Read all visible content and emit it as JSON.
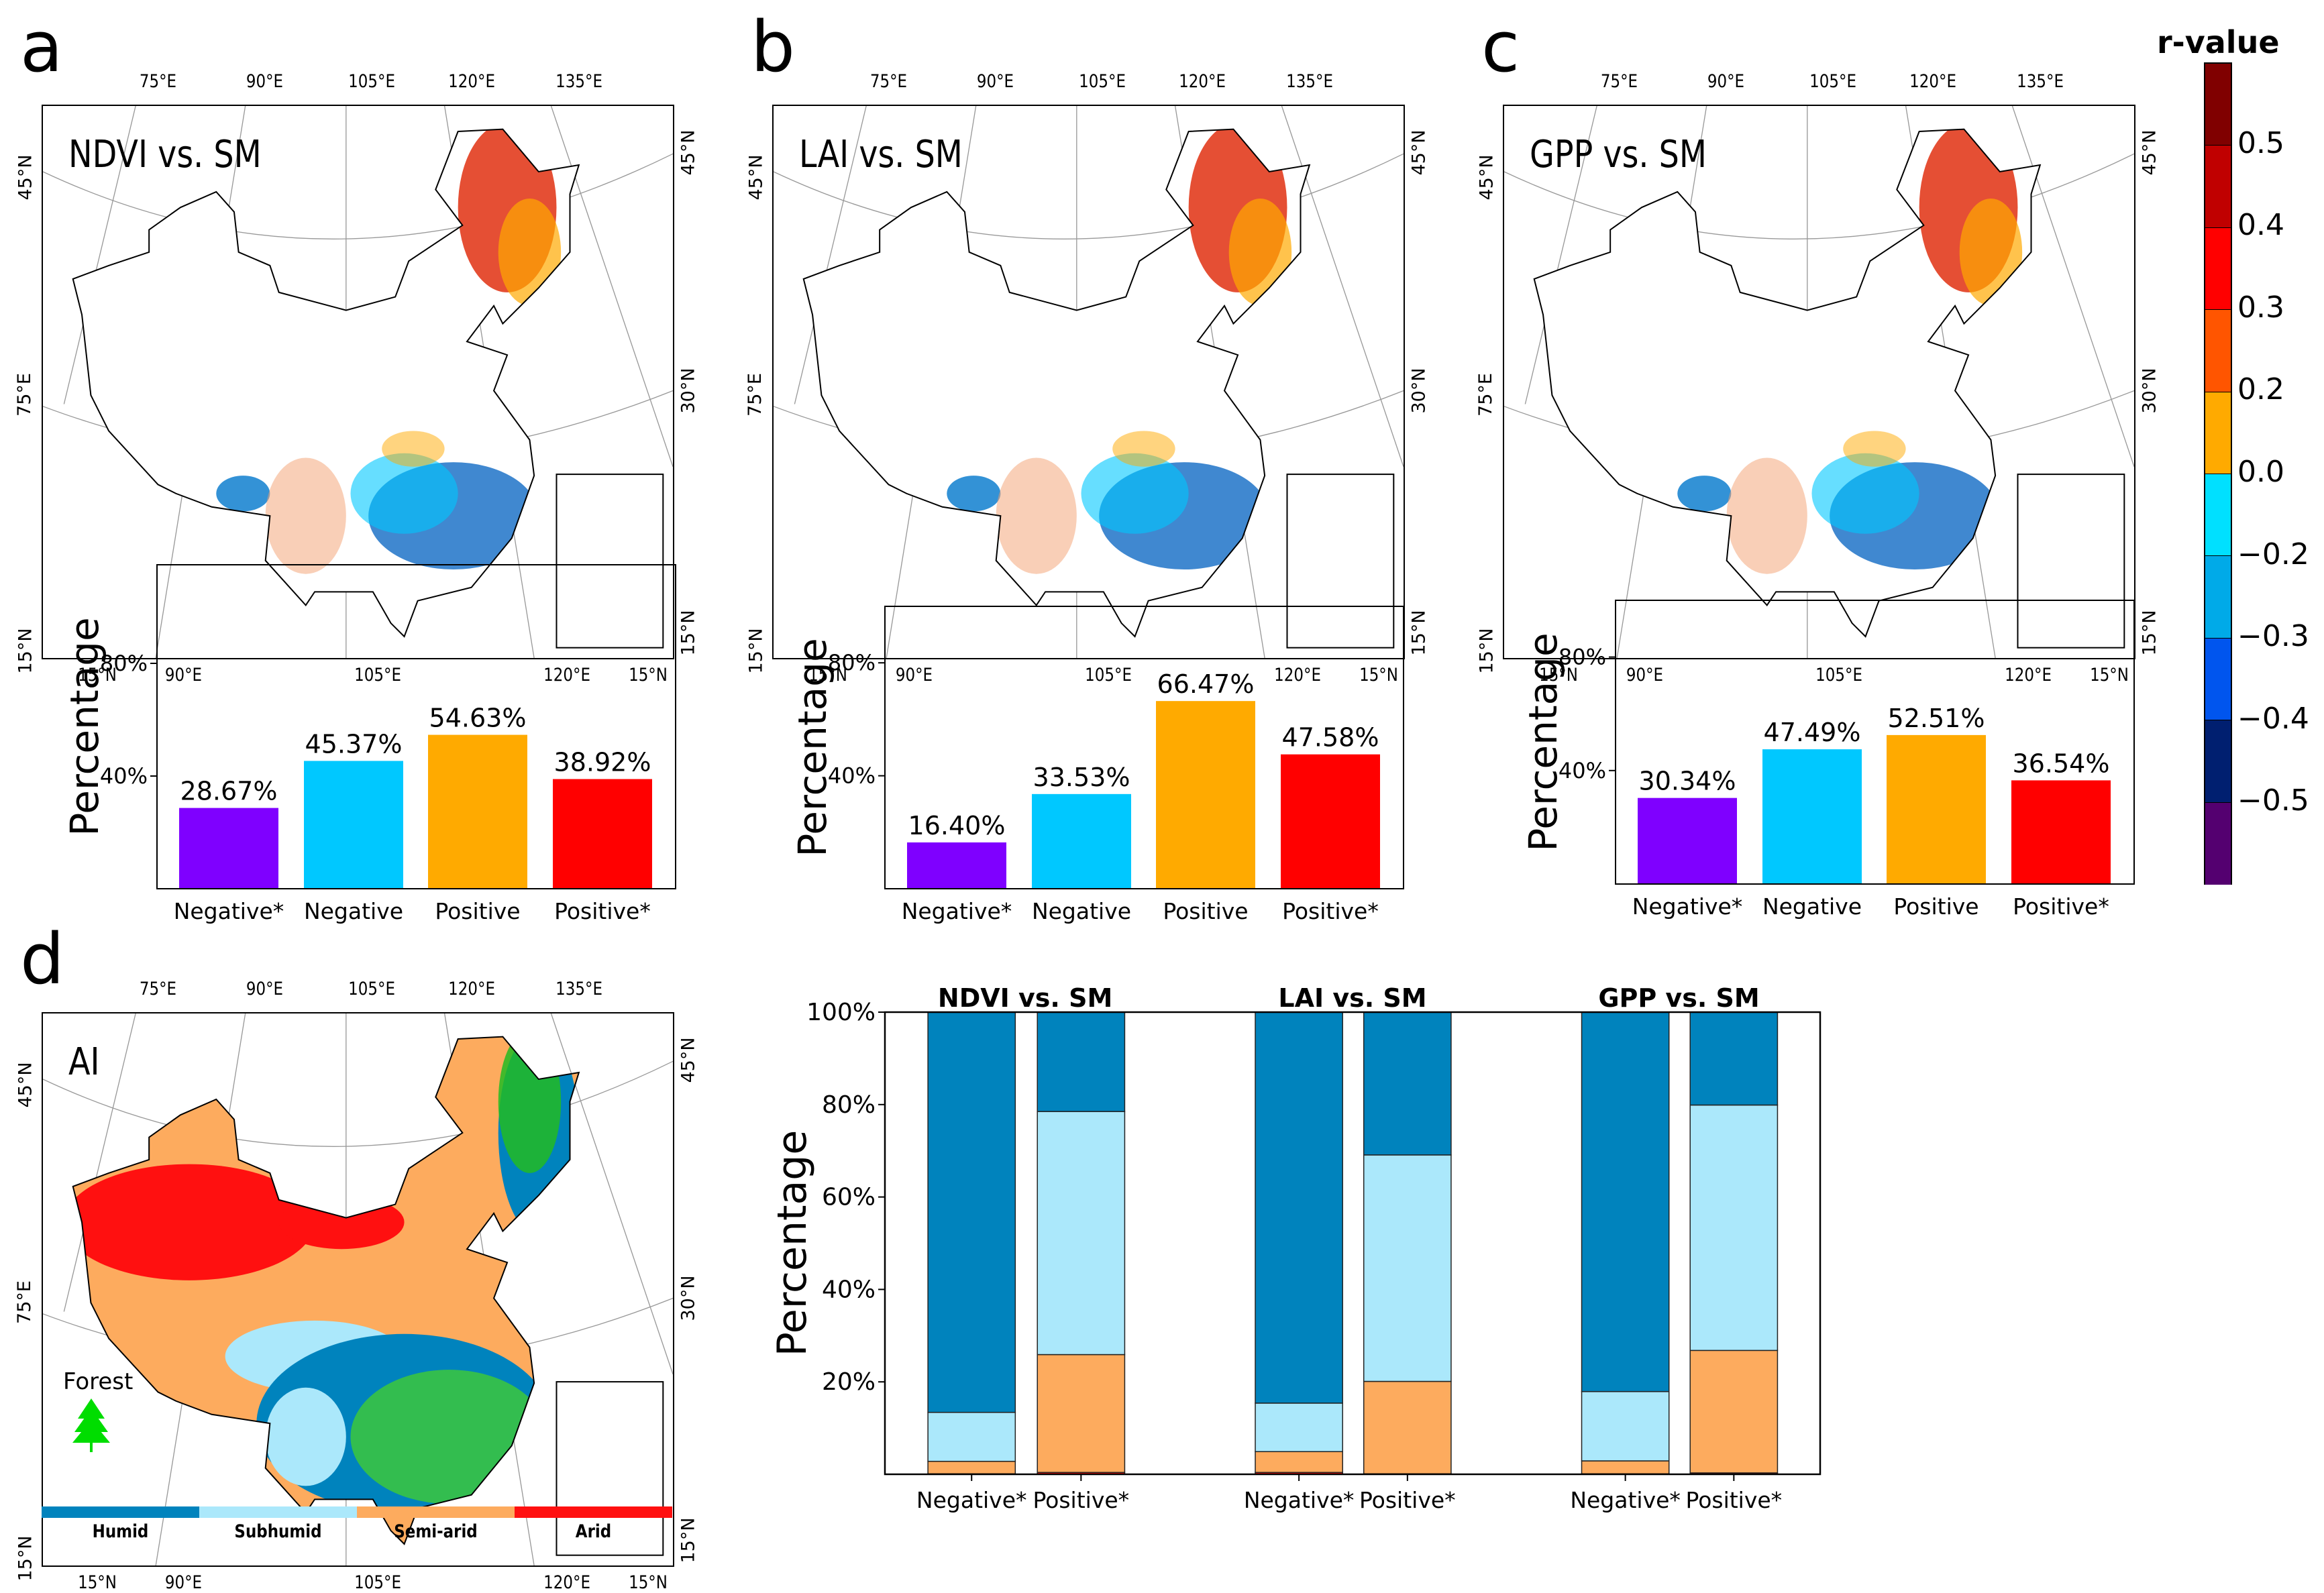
{
  "panels": [
    {
      "letter": "a",
      "map_title": "NDVI vs. SM"
    },
    {
      "letter": "b",
      "map_title": "LAI vs. SM"
    },
    {
      "letter": "c",
      "map_title": "GPP vs. SM"
    }
  ],
  "map_ticks": {
    "top": [
      "75°E",
      "90°E",
      "105°E",
      "120°E",
      "135°E"
    ],
    "bottom": [
      "15°N",
      "90°E",
      "105°E",
      "120°E",
      "15°N"
    ],
    "left": [
      "45°N",
      "75°E",
      "15°N"
    ],
    "right": [
      "45°N",
      "30°N",
      "15°N"
    ]
  },
  "colorbar": {
    "title": "r-value",
    "ticks": [
      "0.5",
      "0.4",
      "0.3",
      "0.2",
      "0.0",
      "−0.2",
      "−0.3",
      "−0.4",
      "−0.5"
    ],
    "colors": [
      "#800000",
      "#c00000",
      "#ff0000",
      "#ff5500",
      "#ffaa00",
      "#00e0ff",
      "#00aae8",
      "#0055ee",
      "#001f70",
      "#540070"
    ]
  },
  "panel_d": {
    "letter": "d",
    "map_title": "AI",
    "forest_label": "Forest",
    "forest_color": "#00dd00",
    "legend": [
      {
        "label": "Humid",
        "color": "#0083bd"
      },
      {
        "label": "Subhumid",
        "color": "#abe8fb"
      },
      {
        "label": "Semi-arid",
        "color": "#fdab5e"
      },
      {
        "label": "Arid",
        "color": "#ff1010"
      }
    ]
  },
  "chart_data": [
    {
      "type": "bar",
      "panel": "a",
      "ylabel": "Percentage",
      "ylim": [
        0,
        115
      ],
      "yticks": [
        40,
        80
      ],
      "ytick_labels": [
        "40%",
        "80%"
      ],
      "categories": [
        "Negative*",
        "Negative",
        "Positive",
        "Positive*"
      ],
      "values": [
        28.67,
        45.37,
        54.63,
        38.92
      ],
      "value_labels": [
        "28.67%",
        "45.37%",
        "54.63%",
        "38.92%"
      ],
      "colors": [
        "#7f00ff",
        "#00c8ff",
        "#ffaa00",
        "#ff0000"
      ]
    },
    {
      "type": "bar",
      "panel": "b",
      "ylabel": "Percentage",
      "ylim": [
        0,
        100
      ],
      "yticks": [
        40,
        80
      ],
      "ytick_labels": [
        "40%",
        "80%"
      ],
      "categories": [
        "Negative*",
        "Negative",
        "Positive",
        "Positive*"
      ],
      "values": [
        16.4,
        33.53,
        66.47,
        47.58
      ],
      "value_labels": [
        "16.40%",
        "33.53%",
        "66.47%",
        "47.58%"
      ],
      "colors": [
        "#7f00ff",
        "#00c8ff",
        "#ffaa00",
        "#ff0000"
      ]
    },
    {
      "type": "bar",
      "panel": "c",
      "ylabel": "Percentage",
      "ylim": [
        0,
        100
      ],
      "yticks": [
        40,
        80
      ],
      "ytick_labels": [
        "40%",
        "80%"
      ],
      "categories": [
        "Negative*",
        "Negative",
        "Positive",
        "Positive*"
      ],
      "values": [
        30.34,
        47.49,
        52.51,
        36.54
      ],
      "value_labels": [
        "30.34%",
        "47.49%",
        "52.51%",
        "36.54%"
      ],
      "colors": [
        "#7f00ff",
        "#00c8ff",
        "#ffaa00",
        "#ff0000"
      ]
    },
    {
      "type": "bar",
      "stacked": true,
      "panel": "d",
      "ylabel": "Percentage",
      "ylim": [
        0,
        100
      ],
      "yticks": [
        20,
        40,
        60,
        80,
        100
      ],
      "ytick_labels": [
        "20%",
        "40%",
        "60%",
        "80%",
        "100%"
      ],
      "groups": [
        "NDVI vs. SM",
        "LAI vs. SM",
        "GPP vs. SM"
      ],
      "categories": [
        "Negative*",
        "Positive*"
      ],
      "stack_order": [
        "Arid",
        "Semi-arid",
        "Subhumid",
        "Humid"
      ],
      "colors": {
        "Arid": "#ff1010",
        "Semi-arid": "#fdab5e",
        "Subhumid": "#abe8fb",
        "Humid": "#0083bd"
      },
      "bars": [
        {
          "group": "NDVI vs. SM",
          "category": "Negative*",
          "Arid": 0.1,
          "Semi-arid": 2.7,
          "Subhumid": 10.6,
          "Humid": 86.6
        },
        {
          "group": "NDVI vs. SM",
          "category": "Positive*",
          "Arid": 0.4,
          "Semi-arid": 25.5,
          "Subhumid": 52.6,
          "Humid": 21.5
        },
        {
          "group": "LAI vs. SM",
          "category": "Negative*",
          "Arid": 0.4,
          "Semi-arid": 4.5,
          "Subhumid": 10.5,
          "Humid": 84.6
        },
        {
          "group": "LAI vs. SM",
          "category": "Positive*",
          "Arid": 0.1,
          "Semi-arid": 20.0,
          "Subhumid": 49.0,
          "Humid": 30.9
        },
        {
          "group": "GPP vs. SM",
          "category": "Negative*",
          "Arid": 0.1,
          "Semi-arid": 2.8,
          "Subhumid": 15.0,
          "Humid": 82.1
        },
        {
          "group": "GPP vs. SM",
          "category": "Positive*",
          "Arid": 0.3,
          "Semi-arid": 26.5,
          "Subhumid": 53.1,
          "Humid": 20.1
        }
      ]
    }
  ]
}
